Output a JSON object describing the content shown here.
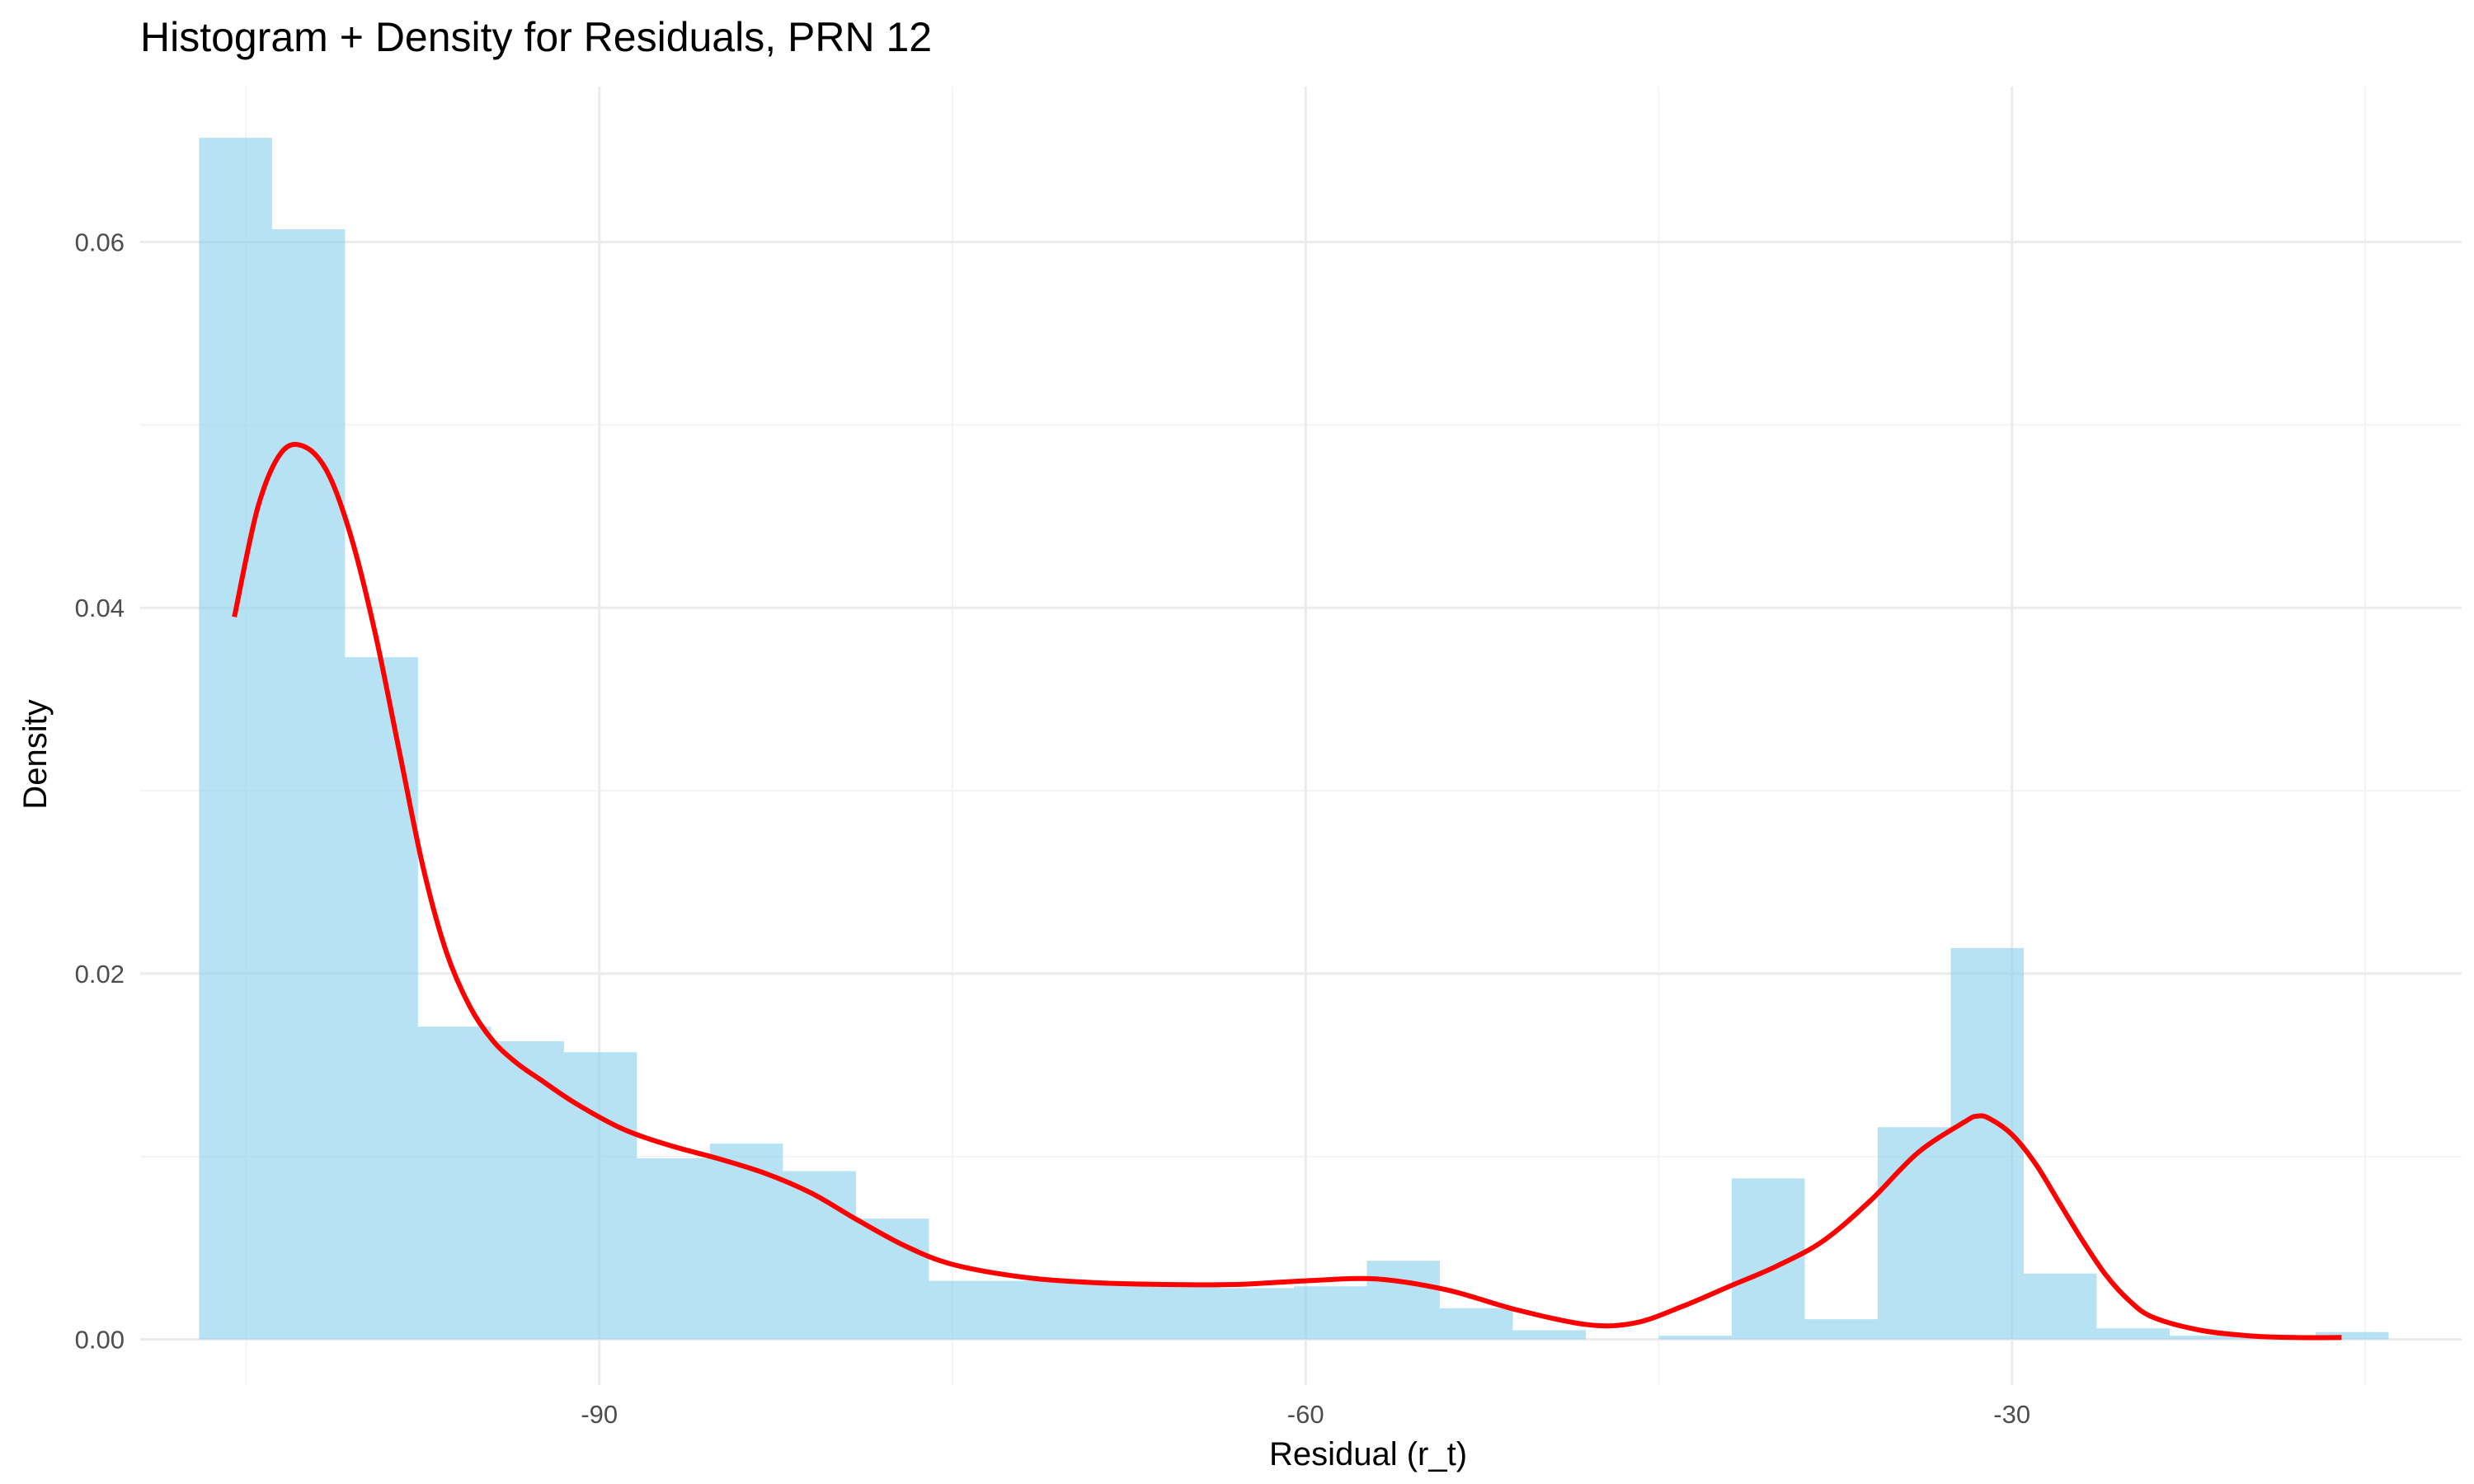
{
  "chart_data": {
    "type": "bar",
    "title": "Histogram + Density for Residuals, PRN 12",
    "xlabel": "Residual (r_t)",
    "ylabel": "Density",
    "xlim": [
      -109.5,
      -10.9
    ],
    "ylim": [
      -0.0025,
      0.0685
    ],
    "x_ticks": [
      -90,
      -60,
      -30
    ],
    "y_ticks": [
      0.0,
      0.02,
      0.04,
      0.06
    ],
    "x_tick_labels": [
      "-90",
      "-60",
      "-30"
    ],
    "y_tick_labels": [
      "0.00",
      "0.02",
      "0.04",
      "0.06"
    ],
    "grid": true,
    "legend": "none",
    "colors": {
      "histogram_fill": "#87CEEB",
      "histogram_opacity": 0.6,
      "density_line": "#FF0000",
      "grid_major": "#ebebeb",
      "grid_minor": "#f4f4f4"
    },
    "series": [
      {
        "type": "histogram",
        "bins": [
          {
            "x0": -107.0,
            "x1": -103.9,
            "density": 0.0657
          },
          {
            "x0": -103.9,
            "x1": -100.8,
            "density": 0.0607
          },
          {
            "x0": -100.8,
            "x1": -97.7,
            "density": 0.0373
          },
          {
            "x0": -97.7,
            "x1": -94.6,
            "density": 0.0171
          },
          {
            "x0": -94.6,
            "x1": -91.5,
            "density": 0.0163
          },
          {
            "x0": -91.5,
            "x1": -88.4,
            "density": 0.0157
          },
          {
            "x0": -88.4,
            "x1": -85.3,
            "density": 0.0099
          },
          {
            "x0": -85.3,
            "x1": -82.2,
            "density": 0.0107
          },
          {
            "x0": -82.2,
            "x1": -79.1,
            "density": 0.0092
          },
          {
            "x0": -79.1,
            "x1": -76.0,
            "density": 0.0066
          },
          {
            "x0": -76.0,
            "x1": -72.9,
            "density": 0.0032
          },
          {
            "x0": -72.9,
            "x1": -69.8,
            "density": 0.0032
          },
          {
            "x0": -69.8,
            "x1": -66.7,
            "density": 0.003
          },
          {
            "x0": -66.7,
            "x1": -63.6,
            "density": 0.0029
          },
          {
            "x0": -63.6,
            "x1": -60.5,
            "density": 0.0028
          },
          {
            "x0": -60.5,
            "x1": -57.4,
            "density": 0.0029
          },
          {
            "x0": -57.4,
            "x1": -54.3,
            "density": 0.0043
          },
          {
            "x0": -54.3,
            "x1": -51.2,
            "density": 0.0017
          },
          {
            "x0": -51.2,
            "x1": -48.1,
            "density": 0.0005
          },
          {
            "x0": -48.1,
            "x1": -45.0,
            "density": 0.0
          },
          {
            "x0": -45.0,
            "x1": -41.9,
            "density": 0.0002
          },
          {
            "x0": -41.9,
            "x1": -38.8,
            "density": 0.0088
          },
          {
            "x0": -38.8,
            "x1": -35.7,
            "density": 0.0011
          },
          {
            "x0": -35.7,
            "x1": -32.6,
            "density": 0.0116
          },
          {
            "x0": -32.6,
            "x1": -29.5,
            "density": 0.0214
          },
          {
            "x0": -29.5,
            "x1": -26.4,
            "density": 0.0036
          },
          {
            "x0": -26.4,
            "x1": -23.3,
            "density": 0.0006
          },
          {
            "x0": -23.3,
            "x1": -20.2,
            "density": 0.0002
          },
          {
            "x0": -20.2,
            "x1": -17.1,
            "density": 0.0001
          },
          {
            "x0": -17.1,
            "x1": -14.0,
            "density": 0.0004
          }
        ]
      },
      {
        "type": "line",
        "x": [
          -105.5,
          -104.5,
          -103.5,
          -102.5,
          -101.5,
          -100.5,
          -99.5,
          -98.5,
          -97.5,
          -96.5,
          -95.5,
          -94.5,
          -93.5,
          -92.5,
          -91.0,
          -89.0,
          -87.0,
          -85.0,
          -83.0,
          -81.0,
          -79.0,
          -77.0,
          -75.0,
          -72.0,
          -69.0,
          -66.0,
          -63.0,
          -60.0,
          -57.0,
          -54.0,
          -51.0,
          -48.0,
          -46.0,
          -44.0,
          -42.0,
          -40.0,
          -38.0,
          -36.0,
          -34.0,
          -32.0,
          -31.5,
          -31.0,
          -30.0,
          -29.0,
          -28.0,
          -27.0,
          -26.0,
          -25.0,
          -24.0,
          -22.0,
          -20.0,
          -18.0,
          -16.0
        ],
        "y": [
          0.0395,
          0.0455,
          0.0485,
          0.0488,
          0.0473,
          0.0437,
          0.0385,
          0.0322,
          0.0259,
          0.0212,
          0.0182,
          0.0163,
          0.0151,
          0.0142,
          0.0129,
          0.0115,
          0.0106,
          0.0099,
          0.0091,
          0.008,
          0.0065,
          0.0051,
          0.0041,
          0.0034,
          0.0031,
          0.003,
          0.003,
          0.0032,
          0.0033,
          0.0027,
          0.0016,
          0.0008,
          0.0009,
          0.0018,
          0.0029,
          0.004,
          0.0054,
          0.0076,
          0.0102,
          0.0119,
          0.0122,
          0.0121,
          0.0112,
          0.0096,
          0.0075,
          0.0054,
          0.0035,
          0.0021,
          0.0012,
          0.0005,
          0.0002,
          0.0001,
          0.0001
        ]
      }
    ]
  }
}
